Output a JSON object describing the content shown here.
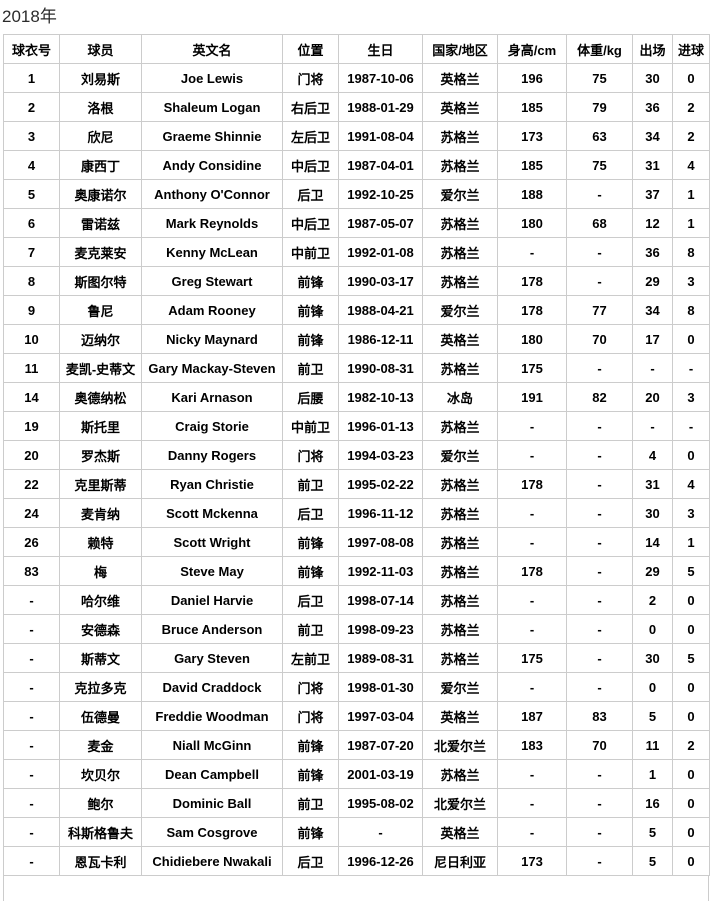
{
  "page": {
    "title": "2018年"
  },
  "table": {
    "columns": [
      "球衣号",
      "球员",
      "英文名",
      "位置",
      "生日",
      "国家/地区",
      "身高/cm",
      "体重/kg",
      "出场",
      "进球"
    ],
    "rows": [
      [
        "1",
        "刘易斯",
        "Joe Lewis",
        "门将",
        "1987-10-06",
        "英格兰",
        "196",
        "75",
        "30",
        "0"
      ],
      [
        "2",
        "洛根",
        "Shaleum Logan",
        "右后卫",
        "1988-01-29",
        "英格兰",
        "185",
        "79",
        "36",
        "2"
      ],
      [
        "3",
        "欣尼",
        "Graeme Shinnie",
        "左后卫",
        "1991-08-04",
        "苏格兰",
        "173",
        "63",
        "34",
        "2"
      ],
      [
        "4",
        "康西丁",
        "Andy Considine",
        "中后卫",
        "1987-04-01",
        "苏格兰",
        "185",
        "75",
        "31",
        "4"
      ],
      [
        "5",
        "奥康诺尔",
        "Anthony O'Connor",
        "后卫",
        "1992-10-25",
        "爱尔兰",
        "188",
        "-",
        "37",
        "1"
      ],
      [
        "6",
        "雷诺兹",
        "Mark Reynolds",
        "中后卫",
        "1987-05-07",
        "苏格兰",
        "180",
        "68",
        "12",
        "1"
      ],
      [
        "7",
        "麦克莱安",
        "Kenny McLean",
        "中前卫",
        "1992-01-08",
        "苏格兰",
        "-",
        "-",
        "36",
        "8"
      ],
      [
        "8",
        "斯图尔特",
        "Greg Stewart",
        "前锋",
        "1990-03-17",
        "苏格兰",
        "178",
        "-",
        "29",
        "3"
      ],
      [
        "9",
        "鲁尼",
        "Adam Rooney",
        "前锋",
        "1988-04-21",
        "爱尔兰",
        "178",
        "77",
        "34",
        "8"
      ],
      [
        "10",
        "迈纳尔",
        "Nicky Maynard",
        "前锋",
        "1986-12-11",
        "英格兰",
        "180",
        "70",
        "17",
        "0"
      ],
      [
        "11",
        "麦凯-史蒂文",
        "Gary Mackay-Steven",
        "前卫",
        "1990-08-31",
        "苏格兰",
        "175",
        "-",
        "-",
        "-"
      ],
      [
        "14",
        "奥德纳松",
        "Kari Arnason",
        "后腰",
        "1982-10-13",
        "冰岛",
        "191",
        "82",
        "20",
        "3"
      ],
      [
        "19",
        "斯托里",
        "Craig Storie",
        "中前卫",
        "1996-01-13",
        "苏格兰",
        "-",
        "-",
        "-",
        "-"
      ],
      [
        "20",
        "罗杰斯",
        "Danny Rogers",
        "门将",
        "1994-03-23",
        "爱尔兰",
        "-",
        "-",
        "4",
        "0"
      ],
      [
        "22",
        "克里斯蒂",
        "Ryan Christie",
        "前卫",
        "1995-02-22",
        "苏格兰",
        "178",
        "-",
        "31",
        "4"
      ],
      [
        "24",
        "麦肯纳",
        "Scott Mckenna",
        "后卫",
        "1996-11-12",
        "苏格兰",
        "-",
        "-",
        "30",
        "3"
      ],
      [
        "26",
        "赖特",
        "Scott Wright",
        "前锋",
        "1997-08-08",
        "苏格兰",
        "-",
        "-",
        "14",
        "1"
      ],
      [
        "83",
        "梅",
        "Steve May",
        "前锋",
        "1992-11-03",
        "苏格兰",
        "178",
        "-",
        "29",
        "5"
      ],
      [
        "-",
        "哈尔维",
        "Daniel Harvie",
        "后卫",
        "1998-07-14",
        "苏格兰",
        "-",
        "-",
        "2",
        "0"
      ],
      [
        "-",
        "安德森",
        "Bruce Anderson",
        "前卫",
        "1998-09-23",
        "苏格兰",
        "-",
        "-",
        "0",
        "0"
      ],
      [
        "-",
        "斯蒂文",
        "Gary Steven",
        "左前卫",
        "1989-08-31",
        "苏格兰",
        "175",
        "-",
        "30",
        "5"
      ],
      [
        "-",
        "克拉多克",
        "David Craddock",
        "门将",
        "1998-01-30",
        "爱尔兰",
        "-",
        "-",
        "0",
        "0"
      ],
      [
        "-",
        "伍德曼",
        "Freddie Woodman",
        "门将",
        "1997-03-04",
        "英格兰",
        "187",
        "83",
        "5",
        "0"
      ],
      [
        "-",
        "麦金",
        "Niall McGinn",
        "前锋",
        "1987-07-20",
        "北爱尔兰",
        "183",
        "70",
        "11",
        "2"
      ],
      [
        "-",
        "坎贝尔",
        "Dean Campbell",
        "前锋",
        "2001-03-19",
        "苏格兰",
        "-",
        "-",
        "1",
        "0"
      ],
      [
        "-",
        "鲍尔",
        "Dominic Ball",
        "前卫",
        "1995-08-02",
        "北爱尔兰",
        "-",
        "-",
        "16",
        "0"
      ],
      [
        "-",
        "科斯格鲁夫",
        "Sam Cosgrove",
        "前锋",
        "-",
        "英格兰",
        "-",
        "-",
        "5",
        "0"
      ],
      [
        "-",
        "恩瓦卡利",
        "Chidiebere Nwakali",
        "后卫",
        "1996-12-26",
        "尼日利亚",
        "173",
        "-",
        "5",
        "0"
      ]
    ]
  },
  "colors": {
    "border": "#cccccc",
    "text": "#000000",
    "title_text": "#2b2b2b",
    "background": "#ffffff"
  }
}
